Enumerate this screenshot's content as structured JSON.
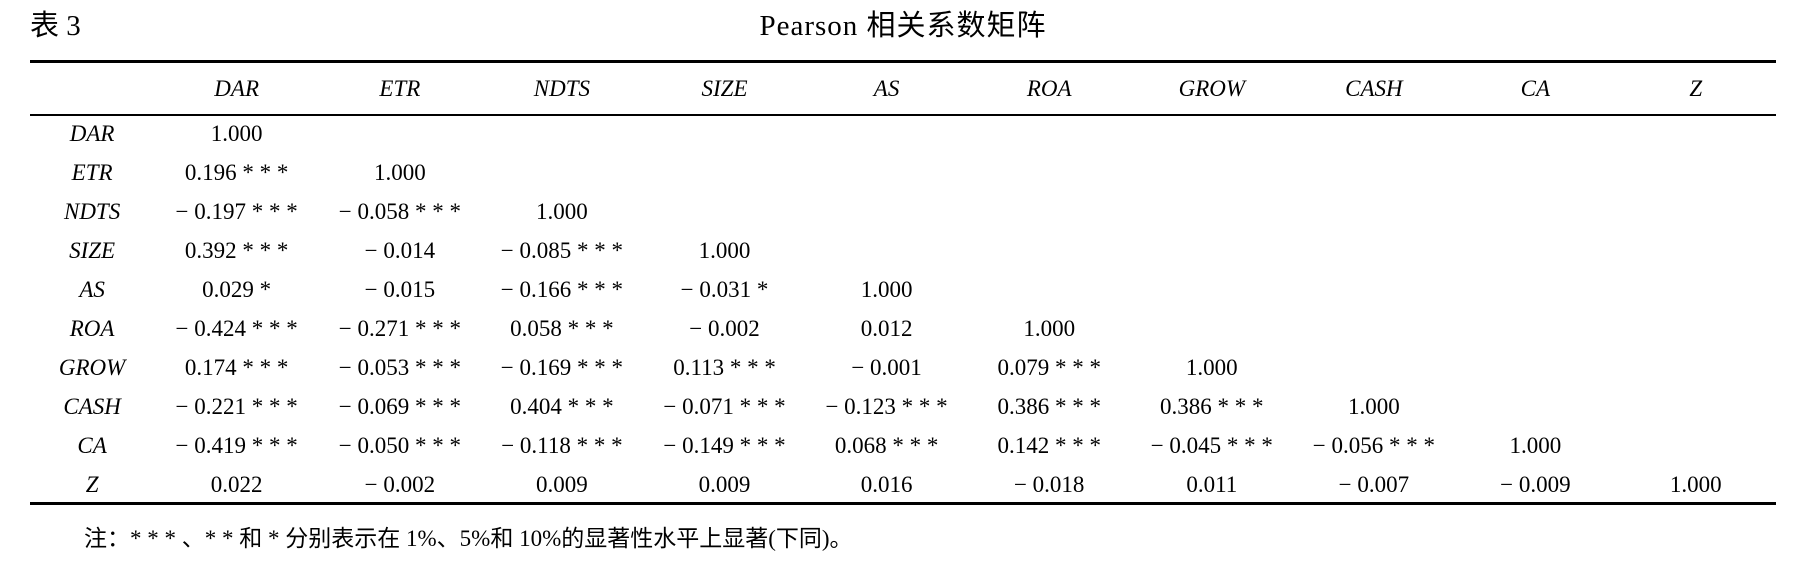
{
  "table": {
    "label": "表 3",
    "title": "Pearson 相关系数矩阵",
    "columns": [
      "",
      "DAR",
      "ETR",
      "NDTS",
      "SIZE",
      "AS",
      "ROA",
      "GROW",
      "CASH",
      "CA",
      "Z"
    ],
    "rows": [
      {
        "name": "DAR",
        "cells": [
          "1.000",
          "",
          "",
          "",
          "",
          "",
          "",
          "",
          "",
          ""
        ]
      },
      {
        "name": "ETR",
        "cells": [
          "0.196 * * *",
          "1.000",
          "",
          "",
          "",
          "",
          "",
          "",
          "",
          ""
        ]
      },
      {
        "name": "NDTS",
        "cells": [
          "− 0.197 * * *",
          "− 0.058 * * *",
          "1.000",
          "",
          "",
          "",
          "",
          "",
          "",
          ""
        ]
      },
      {
        "name": "SIZE",
        "cells": [
          "0.392 * * *",
          "− 0.014",
          "− 0.085 * * *",
          "1.000",
          "",
          "",
          "",
          "",
          "",
          ""
        ]
      },
      {
        "name": "AS",
        "cells": [
          "0.029 *",
          "− 0.015",
          "− 0.166 * * *",
          "− 0.031 *",
          "1.000",
          "",
          "",
          "",
          "",
          ""
        ]
      },
      {
        "name": "ROA",
        "cells": [
          "− 0.424 * * *",
          "− 0.271 * * *",
          "0.058 * * *",
          "− 0.002",
          "0.012",
          "1.000",
          "",
          "",
          "",
          ""
        ]
      },
      {
        "name": "GROW",
        "cells": [
          "0.174 * * *",
          "− 0.053 * * *",
          "− 0.169 * * *",
          "0.113 * * *",
          "− 0.001",
          "0.079 * * *",
          "1.000",
          "",
          "",
          ""
        ]
      },
      {
        "name": "CASH",
        "cells": [
          "− 0.221 * * *",
          "− 0.069 * * *",
          "0.404 * * *",
          "− 0.071 * * *",
          "− 0.123 * * *",
          "0.386 * * *",
          "0.386 * * *",
          "1.000",
          "",
          ""
        ]
      },
      {
        "name": "CA",
        "cells": [
          "− 0.419 * * *",
          "− 0.050 * * *",
          "− 0.118 * * *",
          "− 0.149 * * *",
          "0.068 * * *",
          "0.142 * * *",
          "− 0.045 * * *",
          "− 0.056 * * *",
          "1.000",
          ""
        ]
      },
      {
        "name": "Z",
        "cells": [
          "0.022",
          "− 0.002",
          "0.009",
          "0.009",
          "0.016",
          "− 0.018",
          "0.011",
          "− 0.007",
          "− 0.009",
          "1.000"
        ]
      }
    ],
    "note": "注：* * * 、* * 和 * 分别表示在 1%、5%和 10%的显著性水平上显著(下同)。"
  }
}
